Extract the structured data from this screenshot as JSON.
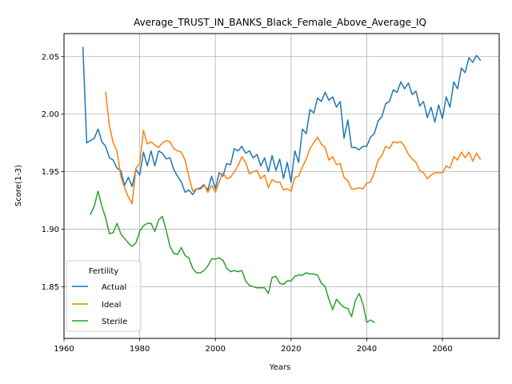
{
  "chart_data": {
    "type": "line",
    "title": "Average_TRUST_IN_BANKS_Black_Female_Above_Average_IQ",
    "xlabel": "Years",
    "ylabel": "Score(1-3)",
    "xlim": [
      1960,
      2075
    ],
    "ylim": [
      1.805,
      2.07
    ],
    "xticks": [
      1960,
      1980,
      2000,
      2020,
      2040,
      2060
    ],
    "yticks": [
      1.85,
      1.9,
      1.95,
      2.0,
      2.05
    ],
    "ytick_labels": [
      "1.85",
      "1.90",
      "1.95",
      "2.00",
      "2.05"
    ],
    "grid": true,
    "legend": {
      "title": "Fertility",
      "placement": "lower-left"
    },
    "series": [
      {
        "name": "Actual",
        "color": "#1f77b4",
        "x": [
          1965,
          1966,
          1967,
          1968,
          1969,
          1970,
          1971,
          1972,
          1973,
          1974,
          1975,
          1976,
          1977,
          1978,
          1979,
          1980,
          1981,
          1982,
          1983,
          1984,
          1985,
          1986,
          1987,
          1988,
          1989,
          1990,
          1991,
          1992,
          1993,
          1994,
          1995,
          1996,
          1997,
          1998,
          1999,
          2000,
          2001,
          2002,
          2003,
          2004,
          2005,
          2006,
          2007,
          2008,
          2009,
          2010,
          2011,
          2012,
          2013,
          2014,
          2015,
          2016,
          2017,
          2018,
          2019,
          2020,
          2021,
          2022,
          2023,
          2024,
          2025,
          2026,
          2027,
          2028,
          2029,
          2030,
          2031,
          2032,
          2033,
          2034,
          2035,
          2036,
          2037,
          2038,
          2039,
          2040,
          2041,
          2042,
          2043,
          2044,
          2045,
          2046,
          2047,
          2048,
          2049,
          2050,
          2051,
          2052,
          2053,
          2054,
          2055,
          2056,
          2057,
          2058,
          2059,
          2060,
          2061,
          2062,
          2063,
          2064,
          2065,
          2066,
          2067,
          2068,
          2069,
          2070
        ],
        "values": [
          2.058,
          1.975,
          1.977,
          1.979,
          1.987,
          1.976,
          1.972,
          1.962,
          1.96,
          1.953,
          1.951,
          1.938,
          1.945,
          1.937,
          1.952,
          1.947,
          1.967,
          1.955,
          1.968,
          1.955,
          1.968,
          1.966,
          1.961,
          1.962,
          1.952,
          1.946,
          1.941,
          1.932,
          1.934,
          1.93,
          1.935,
          1.935,
          1.938,
          1.934,
          1.946,
          1.935,
          1.949,
          1.946,
          1.957,
          1.956,
          1.97,
          1.968,
          1.972,
          1.966,
          1.968,
          1.962,
          1.965,
          1.955,
          1.962,
          1.95,
          1.964,
          1.951,
          1.961,
          1.944,
          1.958,
          1.941,
          1.968,
          1.958,
          1.987,
          1.983,
          2.004,
          2.001,
          2.014,
          2.011,
          2.019,
          2.012,
          2.015,
          2.006,
          2.011,
          1.979,
          1.995,
          1.971,
          1.971,
          1.969,
          1.972,
          1.972,
          1.98,
          1.983,
          1.994,
          1.998,
          2.009,
          2.011,
          2.021,
          2.019,
          2.028,
          2.022,
          2.027,
          2.017,
          2.02,
          2.007,
          2.011,
          1.997,
          2.006,
          1.993,
          2.008,
          1.996,
          2.015,
          2.006,
          2.028,
          2.022,
          2.04,
          2.036,
          2.049,
          2.045,
          2.051,
          2.047
        ]
      },
      {
        "name": "Ideal",
        "color": "#ff7f0e",
        "x": [
          1971,
          1972,
          1973,
          1974,
          1975,
          1976,
          1977,
          1978,
          1979,
          1980,
          1981,
          1982,
          1983,
          1984,
          1985,
          1986,
          1987,
          1988,
          1989,
          1990,
          1991,
          1992,
          1993,
          1994,
          1995,
          1996,
          1997,
          1998,
          1999,
          2000,
          2001,
          2002,
          2003,
          2004,
          2005,
          2006,
          2007,
          2008,
          2009,
          2010,
          2011,
          2012,
          2013,
          2014,
          2015,
          2016,
          2017,
          2018,
          2019,
          2020,
          2021,
          2022,
          2023,
          2024,
          2025,
          2026,
          2027,
          2028,
          2029,
          2030,
          2031,
          2032,
          2033,
          2034,
          2035,
          2036,
          2037,
          2038,
          2039,
          2040,
          2041,
          2042,
          2043,
          2044,
          2045,
          2046,
          2047,
          2048,
          2049,
          2050,
          2051,
          2052,
          2053,
          2054,
          2055,
          2056,
          2057,
          2058,
          2059,
          2060,
          2061,
          2062,
          2063,
          2064,
          2065,
          2066,
          2067,
          2068,
          2069,
          2070
        ],
        "values": [
          2.019,
          1.99,
          1.975,
          1.968,
          1.946,
          1.936,
          1.928,
          1.922,
          1.953,
          1.957,
          1.986,
          1.974,
          1.976,
          1.973,
          1.971,
          1.975,
          1.977,
          1.976,
          1.97,
          1.968,
          1.967,
          1.96,
          1.946,
          1.933,
          1.935,
          1.936,
          1.939,
          1.932,
          1.938,
          1.932,
          1.941,
          1.949,
          1.944,
          1.945,
          1.95,
          1.955,
          1.963,
          1.958,
          1.948,
          1.95,
          1.951,
          1.944,
          1.947,
          1.936,
          1.943,
          1.941,
          1.941,
          1.934,
          1.935,
          1.933,
          1.945,
          1.946,
          1.954,
          1.961,
          1.97,
          1.975,
          1.98,
          1.974,
          1.971,
          1.96,
          1.963,
          1.956,
          1.957,
          1.945,
          1.942,
          1.935,
          1.935,
          1.936,
          1.935,
          1.94,
          1.941,
          1.949,
          1.96,
          1.964,
          1.972,
          1.97,
          1.976,
          1.975,
          1.976,
          1.972,
          1.965,
          1.961,
          1.958,
          1.951,
          1.949,
          1.944,
          1.947,
          1.949,
          1.949,
          1.949,
          1.955,
          1.953,
          1.963,
          1.96,
          1.967,
          1.962,
          1.967,
          1.959,
          1.966,
          1.961
        ]
      },
      {
        "name": "Sterile",
        "color": "#2ca02c",
        "x": [
          1967,
          1968,
          1969,
          1970,
          1971,
          1972,
          1973,
          1974,
          1975,
          1976,
          1977,
          1978,
          1979,
          1980,
          1981,
          1982,
          1983,
          1984,
          1985,
          1986,
          1987,
          1988,
          1989,
          1990,
          1991,
          1992,
          1993,
          1994,
          1995,
          1996,
          1997,
          1998,
          1999,
          2000,
          2001,
          2002,
          2003,
          2004,
          2005,
          2006,
          2007,
          2008,
          2009,
          2010,
          2011,
          2012,
          2013,
          2014,
          2015,
          2016,
          2017,
          2018,
          2019,
          2020,
          2021,
          2022,
          2023,
          2024,
          2025,
          2026,
          2027,
          2028,
          2029,
          2030,
          2031,
          2032,
          2033,
          2034,
          2035,
          2036,
          2037,
          2038,
          2039,
          2040,
          2041,
          2042
        ],
        "values": [
          1.913,
          1.92,
          1.933,
          1.92,
          1.91,
          1.896,
          1.897,
          1.905,
          1.896,
          1.892,
          1.888,
          1.885,
          1.888,
          1.898,
          1.903,
          1.905,
          1.905,
          1.898,
          1.908,
          1.911,
          1.899,
          1.885,
          1.879,
          1.878,
          1.884,
          1.877,
          1.875,
          1.866,
          1.862,
          1.862,
          1.864,
          1.868,
          1.874,
          1.874,
          1.875,
          1.873,
          1.866,
          1.863,
          1.864,
          1.863,
          1.864,
          1.855,
          1.851,
          1.85,
          1.849,
          1.849,
          1.849,
          1.844,
          1.858,
          1.859,
          1.853,
          1.852,
          1.855,
          1.855,
          1.859,
          1.86,
          1.86,
          1.862,
          1.861,
          1.861,
          1.86,
          1.853,
          1.85,
          1.839,
          1.83,
          1.839,
          1.835,
          1.832,
          1.831,
          1.824,
          1.838,
          1.844,
          1.835,
          1.819,
          1.821,
          1.819
        ]
      }
    ]
  }
}
